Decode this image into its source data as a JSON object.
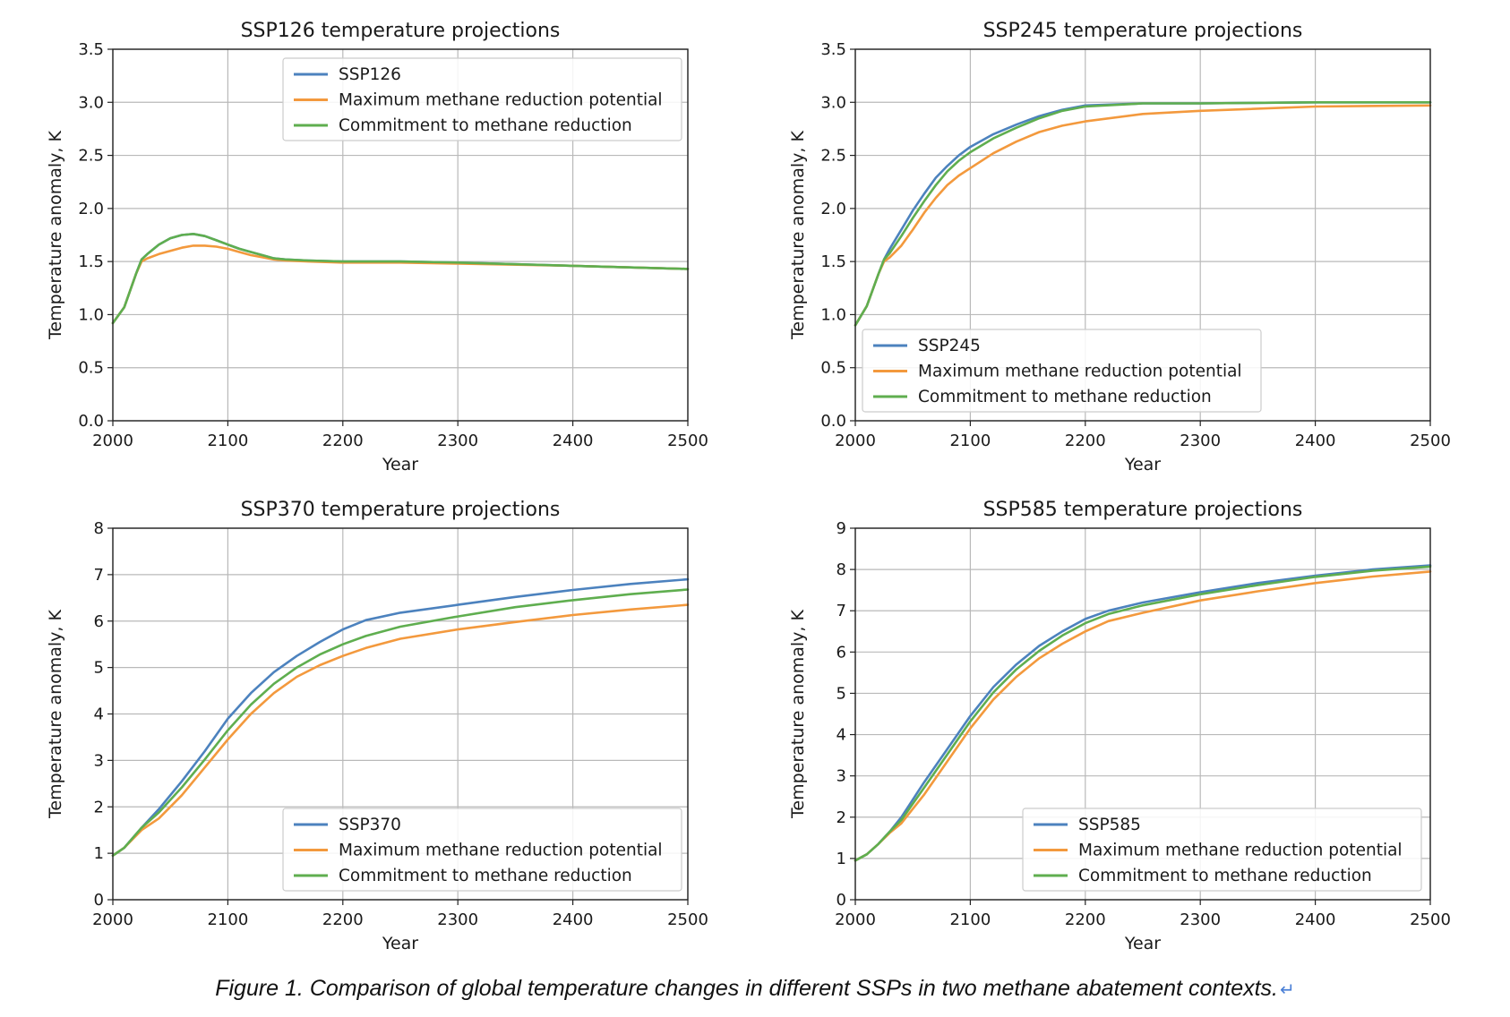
{
  "caption": "Figure 1. Comparison of global temperature changes in different SSPs in two methane abatement contexts.",
  "caption_mark": "↵",
  "colors": {
    "series_1": "#4c82be",
    "series_2": "#f3993d",
    "series_3": "#5fae4f",
    "grid": "#b9b9b9",
    "axis": "#222222"
  },
  "chart_data": [
    {
      "type": "line",
      "title": "SSP126 temperature projections",
      "xlabel": "Year",
      "ylabel": "Temperature anomaly, K",
      "xlim": [
        2000,
        2500
      ],
      "ylim": [
        0,
        3.5
      ],
      "xticks": [
        2000,
        2100,
        2200,
        2300,
        2400,
        2500
      ],
      "yticks": [
        "0.0",
        "0.5",
        "1.0",
        "1.5",
        "2.0",
        "2.5",
        "3.0",
        "3.5"
      ],
      "grid": true,
      "legend_position": "upper-center",
      "x": [
        2000,
        2010,
        2020,
        2025,
        2030,
        2040,
        2050,
        2060,
        2070,
        2080,
        2090,
        2100,
        2110,
        2120,
        2130,
        2140,
        2150,
        2170,
        2200,
        2250,
        2300,
        2400,
        2500
      ],
      "series": [
        {
          "name": "SSP126",
          "values": [
            0.92,
            1.07,
            1.38,
            1.52,
            1.57,
            1.66,
            1.72,
            1.75,
            1.76,
            1.74,
            1.7,
            1.66,
            1.62,
            1.59,
            1.56,
            1.53,
            1.52,
            1.51,
            1.5,
            1.5,
            1.49,
            1.46,
            1.43
          ]
        },
        {
          "name": "Maximum methane reduction potential",
          "values": [
            0.92,
            1.07,
            1.38,
            1.5,
            1.53,
            1.57,
            1.6,
            1.63,
            1.65,
            1.65,
            1.64,
            1.62,
            1.59,
            1.56,
            1.54,
            1.52,
            1.51,
            1.5,
            1.49,
            1.49,
            1.48,
            1.46,
            1.43
          ]
        },
        {
          "name": "Commitment to methane reduction",
          "values": [
            0.92,
            1.07,
            1.38,
            1.52,
            1.57,
            1.66,
            1.72,
            1.75,
            1.76,
            1.74,
            1.7,
            1.66,
            1.62,
            1.59,
            1.56,
            1.53,
            1.52,
            1.51,
            1.5,
            1.5,
            1.49,
            1.46,
            1.43
          ]
        }
      ]
    },
    {
      "type": "line",
      "title": "SSP245 temperature projections",
      "xlabel": "Year",
      "ylabel": "Temperature anomaly, K",
      "xlim": [
        2000,
        2500
      ],
      "ylim": [
        0,
        3.5
      ],
      "xticks": [
        2000,
        2100,
        2200,
        2300,
        2400,
        2500
      ],
      "yticks": [
        "0.0",
        "0.5",
        "1.0",
        "1.5",
        "2.0",
        "2.5",
        "3.0",
        "3.5"
      ],
      "grid": true,
      "legend_position": "lower-left",
      "x": [
        2000,
        2010,
        2020,
        2025,
        2030,
        2040,
        2050,
        2060,
        2070,
        2080,
        2090,
        2100,
        2120,
        2140,
        2160,
        2180,
        2200,
        2250,
        2300,
        2400,
        2500
      ],
      "series": [
        {
          "name": "SSP245",
          "values": [
            0.9,
            1.08,
            1.38,
            1.52,
            1.62,
            1.8,
            1.98,
            2.14,
            2.29,
            2.4,
            2.5,
            2.58,
            2.7,
            2.79,
            2.87,
            2.93,
            2.97,
            2.99,
            2.99,
            3.0,
            3.0
          ]
        },
        {
          "name": "Maximum methane reduction potential",
          "values": [
            0.9,
            1.08,
            1.38,
            1.5,
            1.54,
            1.65,
            1.8,
            1.96,
            2.1,
            2.22,
            2.31,
            2.38,
            2.52,
            2.63,
            2.72,
            2.78,
            2.82,
            2.89,
            2.92,
            2.96,
            2.97
          ]
        },
        {
          "name": "Commitment to methane reduction",
          "values": [
            0.9,
            1.08,
            1.38,
            1.52,
            1.58,
            1.74,
            1.91,
            2.07,
            2.22,
            2.35,
            2.45,
            2.53,
            2.66,
            2.76,
            2.85,
            2.92,
            2.96,
            2.99,
            2.99,
            3.0,
            3.0
          ]
        }
      ]
    },
    {
      "type": "line",
      "title": "SSP370 temperature projections",
      "xlabel": "Year",
      "ylabel": "Temperature anomaly, K",
      "xlim": [
        2000,
        2500
      ],
      "ylim": [
        0,
        8
      ],
      "xticks": [
        2000,
        2100,
        2200,
        2300,
        2400,
        2500
      ],
      "yticks": [
        "0",
        "1",
        "2",
        "3",
        "4",
        "5",
        "6",
        "7",
        "8"
      ],
      "grid": true,
      "legend_position": "lower-center",
      "x": [
        2000,
        2010,
        2025,
        2040,
        2060,
        2080,
        2100,
        2120,
        2140,
        2160,
        2180,
        2200,
        2220,
        2250,
        2300,
        2350,
        2400,
        2450,
        2500
      ],
      "series": [
        {
          "name": "SSP370",
          "values": [
            0.95,
            1.12,
            1.55,
            1.95,
            2.55,
            3.2,
            3.9,
            4.45,
            4.9,
            5.25,
            5.55,
            5.82,
            6.02,
            6.18,
            6.35,
            6.52,
            6.67,
            6.8,
            6.9
          ]
        },
        {
          "name": "Maximum methane reduction potential",
          "values": [
            0.95,
            1.12,
            1.5,
            1.75,
            2.25,
            2.85,
            3.45,
            4.0,
            4.45,
            4.8,
            5.05,
            5.25,
            5.42,
            5.62,
            5.82,
            5.98,
            6.13,
            6.25,
            6.35
          ]
        },
        {
          "name": "Commitment to methane reduction",
          "values": [
            0.95,
            1.12,
            1.55,
            1.88,
            2.42,
            3.02,
            3.65,
            4.2,
            4.65,
            5.0,
            5.28,
            5.5,
            5.68,
            5.88,
            6.1,
            6.3,
            6.45,
            6.58,
            6.68
          ]
        }
      ]
    },
    {
      "type": "line",
      "title": "SSP585 temperature projections",
      "xlabel": "Year",
      "ylabel": "Temperature anomaly, K",
      "xlim": [
        2000,
        2500
      ],
      "ylim": [
        0,
        9
      ],
      "xticks": [
        2000,
        2100,
        2200,
        2300,
        2400,
        2500
      ],
      "yticks": [
        "0",
        "1",
        "2",
        "3",
        "4",
        "5",
        "6",
        "7",
        "8",
        "9"
      ],
      "grid": true,
      "legend_position": "lower-right",
      "x": [
        2000,
        2010,
        2020,
        2030,
        2040,
        2060,
        2080,
        2100,
        2120,
        2140,
        2160,
        2180,
        2200,
        2220,
        2250,
        2300,
        2350,
        2400,
        2450,
        2500
      ],
      "series": [
        {
          "name": "SSP585",
          "values": [
            0.95,
            1.1,
            1.35,
            1.65,
            2.0,
            2.85,
            3.65,
            4.45,
            5.15,
            5.7,
            6.15,
            6.5,
            6.8,
            7.0,
            7.2,
            7.45,
            7.67,
            7.85,
            8.0,
            8.1
          ]
        },
        {
          "name": "Maximum methane reduction potential",
          "values": [
            0.95,
            1.1,
            1.35,
            1.62,
            1.85,
            2.55,
            3.35,
            4.15,
            4.85,
            5.4,
            5.85,
            6.2,
            6.5,
            6.75,
            6.95,
            7.25,
            7.47,
            7.67,
            7.83,
            7.95
          ]
        },
        {
          "name": "Commitment to methane reduction",
          "values": [
            0.95,
            1.1,
            1.35,
            1.65,
            1.93,
            2.72,
            3.52,
            4.32,
            5.02,
            5.58,
            6.03,
            6.4,
            6.7,
            6.92,
            7.13,
            7.4,
            7.62,
            7.82,
            7.97,
            8.07
          ]
        }
      ]
    }
  ]
}
